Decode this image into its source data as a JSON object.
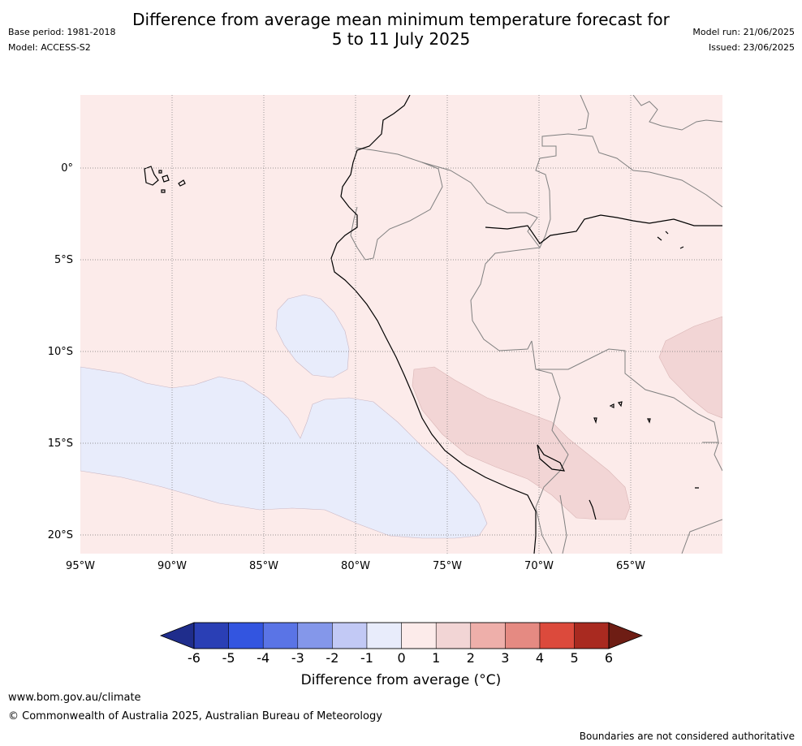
{
  "header": {
    "title_line1": "Difference from average mean minimum temperature forecast for",
    "title_line2": "5 to 11 July 2025",
    "base_period": "Base period: 1981-2018",
    "model": "Model: ACCESS-S2",
    "model_run": "Model run: 21/06/2025",
    "issued": "Issued: 23/06/2025"
  },
  "map": {
    "lat_labels": [
      "0°",
      "5°S",
      "10°S",
      "15°S",
      "20°S"
    ],
    "lon_labels": [
      "95°W",
      "90°W",
      "85°W",
      "80°W",
      "75°W",
      "70°W",
      "65°W"
    ],
    "background_color": "#fcebea",
    "regions": [
      {
        "name": "cool-anomaly-offshore",
        "category": "-1 to 0",
        "color": "#e8ecfb"
      },
      {
        "name": "cool-anomaly-north",
        "category": "-1 to 0",
        "color": "#e8ecfb"
      },
      {
        "name": "warm-anomaly-altiplano",
        "category": "1 to 2",
        "color": "#f2d5d5"
      },
      {
        "name": "warm-anomaly-east",
        "category": "1 to 2",
        "color": "#f2d5d5"
      }
    ]
  },
  "colorbar": {
    "ticks": [
      "-6",
      "-5",
      "-4",
      "-3",
      "-2",
      "-1",
      "0",
      "1",
      "2",
      "3",
      "4",
      "5",
      "6"
    ],
    "colors": [
      "#1f2d8c",
      "#2a3fb5",
      "#3355e0",
      "#5a74e6",
      "#8497ea",
      "#c2c9f5",
      "#e8ecfb",
      "#fcebea",
      "#f2d5d5",
      "#eeafaa",
      "#e58a82",
      "#dc4a3c",
      "#a92a20",
      "#6e1d14"
    ],
    "title": "Difference from average (°C)"
  },
  "footer": {
    "url": "www.bom.gov.au/climate",
    "copyright": "© Commonwealth of Australia 2025, Australian Bureau of Meteorology",
    "disclaimer": "Boundaries are not considered authoritative"
  }
}
